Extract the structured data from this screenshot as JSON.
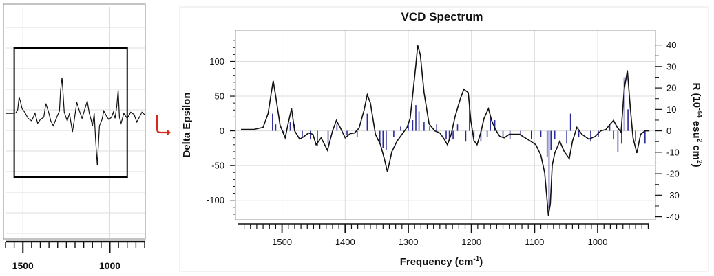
{
  "chart_data": [
    {
      "type": "line",
      "role": "overview",
      "xlim": [
        1600,
        800
      ],
      "x_ticks": [
        1500,
        1000
      ],
      "x_tick_labels": [
        "1500",
        "1000"
      ],
      "grid": true,
      "zoom_box_x": [
        1550,
        900
      ],
      "colors": {
        "line": "#111111",
        "grid": "#dddddd",
        "frame": "#888888",
        "box": "#000000"
      },
      "series": [
        {
          "x": [
            1600,
            1560,
            1540,
            1530,
            1522,
            1515,
            1505,
            1490,
            1470,
            1450,
            1430,
            1415,
            1400,
            1380,
            1368,
            1352,
            1340,
            1325,
            1305,
            1290,
            1283,
            1275,
            1262,
            1245,
            1232,
            1215,
            1205,
            1190,
            1175,
            1160,
            1145,
            1130,
            1118,
            1110,
            1100,
            1090,
            1082,
            1072,
            1060,
            1045,
            1035,
            1020,
            1005,
            990,
            980,
            970,
            960,
            952,
            945,
            935,
            920,
            900,
            880,
            860,
            845,
            830,
            815,
            800
          ],
          "y": [
            2,
            2,
            3,
            8,
            28,
            22,
            10,
            4,
            -6,
            -10,
            2,
            -14,
            -8,
            -4,
            18,
            4,
            -10,
            -18,
            -4,
            6,
            40,
            60,
            4,
            -10,
            2,
            -28,
            -10,
            20,
            6,
            -6,
            8,
            22,
            2,
            -6,
            -18,
            2,
            -40,
            -82,
            -18,
            -8,
            6,
            -2,
            -8,
            -4,
            4,
            -6,
            14,
            40,
            -4,
            -14,
            2,
            -6,
            4,
            0,
            -12,
            -4,
            4,
            0
          ]
        }
      ]
    },
    {
      "type": "line",
      "role": "zoom",
      "title": "VCD Spectrum",
      "xlabel": "Frequency (cm",
      "xlabel_sup": "-1",
      "xlabel_suffix": ")",
      "ylabel": "Delta Epsilon",
      "y2label": "R (10",
      "y2label_sup1": "-44",
      "y2label_mid": " esu",
      "y2label_sup2": "2",
      "y2label_suffix": " cm",
      "y2label_sup3": "2",
      "y2label_end": ")",
      "xlim": [
        1565,
        915
      ],
      "ylim": [
        -128,
        145
      ],
      "y2lim": [
        -40,
        40
      ],
      "x_ticks": [
        1500,
        1400,
        1300,
        1200,
        1100,
        1000
      ],
      "x_tick_labels": [
        "1500",
        "1400",
        "1300",
        "1200",
        "1100",
        "1000"
      ],
      "y_ticks": [
        100,
        50,
        0,
        -50,
        -100
      ],
      "y_tick_labels": [
        "100",
        "50",
        "0",
        "-50",
        "-100"
      ],
      "y2_ticks": [
        40,
        30,
        20,
        10,
        0,
        -10,
        -20,
        -30,
        -40
      ],
      "y2_tick_labels": [
        "40",
        "30",
        "20",
        "10",
        "0",
        "-10",
        "-20",
        "-30",
        "-40"
      ],
      "grid": true,
      "colors": {
        "line": "#111111",
        "sticks": "#2a2a9a",
        "grid": "#dcdcdc",
        "frame": "#999999",
        "arrow": "#d42a1e"
      },
      "series": [
        {
          "x": [
            1565,
            1545,
            1530,
            1522,
            1517,
            1514,
            1510,
            1503,
            1495,
            1490,
            1485,
            1480,
            1472,
            1465,
            1458,
            1451,
            1446,
            1438,
            1428,
            1420,
            1414,
            1408,
            1400,
            1392,
            1385,
            1378,
            1370,
            1365,
            1360,
            1352,
            1344,
            1338,
            1333,
            1326,
            1318,
            1310,
            1302,
            1297,
            1292,
            1288,
            1285,
            1281,
            1275,
            1267,
            1258,
            1250,
            1243,
            1238,
            1232,
            1226,
            1218,
            1212,
            1205,
            1201,
            1196,
            1191,
            1185,
            1180,
            1173,
            1168,
            1162,
            1155,
            1148,
            1140,
            1132,
            1124,
            1115,
            1106,
            1098,
            1090,
            1084,
            1078,
            1075,
            1072,
            1068,
            1060,
            1053,
            1045,
            1040,
            1033,
            1025,
            1014,
            1004,
            995,
            987,
            980,
            975,
            969,
            963,
            958,
            953,
            948,
            944,
            938,
            932,
            925,
            918
          ],
          "y": [
            2,
            2,
            5,
            25,
            55,
            72,
            50,
            8,
            -10,
            12,
            32,
            0,
            -12,
            -8,
            -3,
            -5,
            -20,
            -10,
            -28,
            0,
            15,
            5,
            -10,
            -4,
            -3,
            4,
            30,
            52,
            40,
            -5,
            -20,
            -40,
            -59,
            -30,
            -15,
            -5,
            5,
            18,
            60,
            95,
            123,
            110,
            55,
            10,
            0,
            -3,
            -12,
            -20,
            -5,
            20,
            45,
            60,
            55,
            15,
            -14,
            -20,
            -2,
            18,
            32,
            15,
            2,
            -8,
            -10,
            -5,
            -5,
            -5,
            -10,
            -15,
            -20,
            -35,
            -60,
            -122,
            -105,
            -50,
            -32,
            -15,
            -30,
            -40,
            -15,
            5,
            -5,
            -12,
            -8,
            0,
            2,
            10,
            15,
            5,
            -2,
            60,
            87,
            30,
            -10,
            -32,
            -5,
            0,
            0
          ]
        }
      ],
      "sticks": {
        "x": [
          1515,
          1510,
          1497,
          1487,
          1480,
          1468,
          1455,
          1444,
          1427,
          1413,
          1397,
          1381,
          1365,
          1345,
          1340,
          1335,
          1323,
          1312,
          1300,
          1293,
          1288,
          1283,
          1275,
          1266,
          1255,
          1240,
          1235,
          1229,
          1222,
          1209,
          1203,
          1196,
          1185,
          1175,
          1170,
          1163,
          1150,
          1139,
          1122,
          1105,
          1090,
          1080,
          1077,
          1074,
          1068,
          1049,
          1043,
          1030,
          1011,
          999,
          981,
          975,
          968,
          962,
          958,
          952,
          940,
          925
        ],
        "y": [
          8,
          3,
          -2,
          4,
          3,
          -3,
          -4,
          -7,
          -6,
          3,
          -2,
          -3,
          8,
          -6,
          -8,
          -9,
          -3,
          2,
          3,
          5,
          12,
          9,
          4,
          2,
          3,
          -4,
          -5,
          -4,
          3,
          -5,
          12,
          -3,
          -5,
          -3,
          6,
          5,
          -3,
          -4,
          -2,
          -4,
          -3,
          -12,
          -36,
          -9,
          -4,
          -6,
          8,
          -3,
          -5,
          -3,
          3,
          -4,
          -10,
          -6,
          25,
          10,
          -5,
          -6
        ]
      }
    }
  ]
}
